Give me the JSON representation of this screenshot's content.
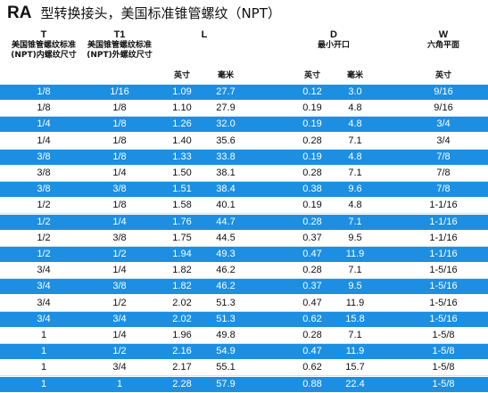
{
  "header": {
    "title_code": "RA",
    "title": "型转换接头，美国标准锥管螺纹（NPT）"
  },
  "table": {
    "columns": [
      {
        "label": "T",
        "sub": [
          "美国锥管螺纹标准",
          "(NPT)内螺纹尺寸"
        ]
      },
      {
        "label": "T1",
        "sub": [
          "美国锥管螺纹标准",
          "(NPT)外螺纹尺寸"
        ]
      },
      {
        "label": "L",
        "sub": []
      },
      {
        "label": "D",
        "sub": [
          "最小开口"
        ]
      },
      {
        "label": "W",
        "sub": [
          "六角平面"
        ]
      }
    ],
    "units": [
      "英寸",
      "毫米",
      "英寸",
      "毫米",
      "英寸"
    ],
    "rows": [
      [
        "1/8",
        "1/16",
        "1.09",
        "27.7",
        "0.12",
        "3.0",
        "9/16"
      ],
      [
        "1/8",
        "1/8",
        "1.10",
        "27.9",
        "0.19",
        "4.8",
        "9/16"
      ],
      [
        "1/4",
        "1/8",
        "1.26",
        "32.0",
        "0.19",
        "4.8",
        "3/4"
      ],
      [
        "1/4",
        "1/8",
        "1.40",
        "35.6",
        "0.28",
        "7.1",
        "3/4"
      ],
      [
        "3/8",
        "1/8",
        "1.33",
        "33.8",
        "0.19",
        "4.8",
        "7/8"
      ],
      [
        "3/8",
        "1/4",
        "1.50",
        "38.1",
        "0.28",
        "7.1",
        "7/8"
      ],
      [
        "3/8",
        "3/8",
        "1.51",
        "38.4",
        "0.38",
        "9.6",
        "7/8"
      ],
      [
        "1/2",
        "1/8",
        "1.58",
        "40.1",
        "0.19",
        "4.8",
        "1-1/16"
      ],
      [
        "1/2",
        "1/4",
        "1.76",
        "44.7",
        "0.28",
        "7.1",
        "1-1/16"
      ],
      [
        "1/2",
        "3/8",
        "1.75",
        "44.5",
        "0.37",
        "9.5",
        "1-1/16"
      ],
      [
        "1/2",
        "1/2",
        "1.94",
        "49.3",
        "0.47",
        "11.9",
        "1-1/16"
      ],
      [
        "3/4",
        "1/4",
        "1.82",
        "46.2",
        "0.28",
        "7.1",
        "1-5/16"
      ],
      [
        "3/4",
        "3/8",
        "1.82",
        "46.2",
        "0.37",
        "9.5",
        "1-5/16"
      ],
      [
        "3/4",
        "1/2",
        "2.02",
        "51.3",
        "0.47",
        "11.9",
        "1-5/16"
      ],
      [
        "3/4",
        "3/4",
        "2.02",
        "51.3",
        "0.62",
        "15.8",
        "1-5/16"
      ],
      [
        "1",
        "1/4",
        "1.96",
        "49.8",
        "0.28",
        "7.1",
        "1-5/8"
      ],
      [
        "1",
        "1/2",
        "2.16",
        "54.9",
        "0.47",
        "11.9",
        "1-5/8"
      ],
      [
        "1",
        "3/4",
        "2.17",
        "55.1",
        "0.62",
        "15.7",
        "1-5/8"
      ],
      [
        "1",
        "1",
        "2.28",
        "57.9",
        "0.88",
        "22.4",
        "1-5/8"
      ]
    ]
  }
}
